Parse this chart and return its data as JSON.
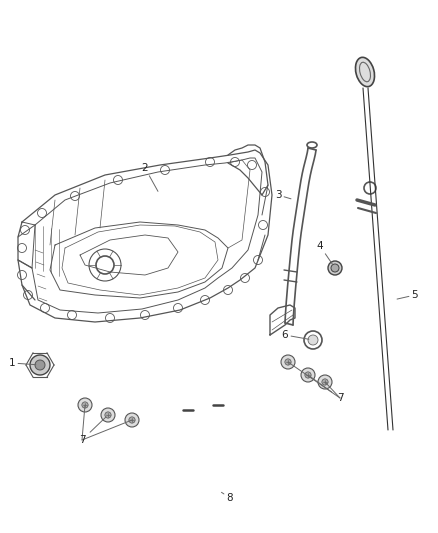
{
  "bg_color": "#ffffff",
  "lc": "#555555",
  "lc2": "#444444",
  "lc3": "#333333",
  "lc_light": "#888888",
  "fig_width": 4.38,
  "fig_height": 5.33,
  "dpi": 100,
  "label_fs": 7.5,
  "label_color": "#222222",
  "leader_color": "#666666",
  "pan_lw": 0.9,
  "tube_lw": 1.3
}
